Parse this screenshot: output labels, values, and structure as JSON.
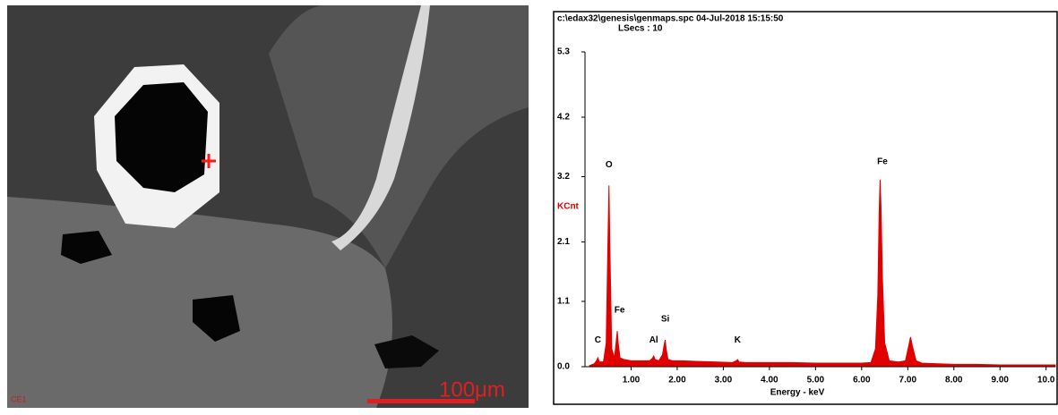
{
  "micrograph": {
    "label": "CE1",
    "scale_label": "100μm"
  },
  "chart_data": {
    "type": "area",
    "title": "c:\\edax32\\genesis\\genmaps.spc  04-Jul-2018 15:15:50",
    "subtitle": "LSecs : 10",
    "y_label": "KCnt",
    "x_label": "Energy - keV",
    "xlim": [
      0,
      10.2
    ],
    "ylim": [
      0,
      5.3
    ],
    "xticks": [
      {
        "value": 1,
        "label": "1.00"
      },
      {
        "value": 2,
        "label": "2.00"
      },
      {
        "value": 3,
        "label": "3.00"
      },
      {
        "value": 4,
        "label": "4.00"
      },
      {
        "value": 5,
        "label": "5.00"
      },
      {
        "value": 6,
        "label": "6.00"
      },
      {
        "value": 7,
        "label": "7.00"
      },
      {
        "value": 8,
        "label": "8.00"
      },
      {
        "value": 9,
        "label": "9.00"
      },
      {
        "value": 10,
        "label": "10.0"
      }
    ],
    "yticks": [
      {
        "value": 0,
        "label": "0.0"
      },
      1.1,
      2.1,
      3.2,
      4.2,
      5.3
    ],
    "x": [
      0.1,
      0.2,
      0.25,
      0.28,
      0.31,
      0.4,
      0.46,
      0.5,
      0.52,
      0.54,
      0.58,
      0.64,
      0.68,
      0.7,
      0.72,
      0.76,
      0.85,
      1.0,
      1.2,
      1.4,
      1.46,
      1.49,
      1.52,
      1.6,
      1.68,
      1.72,
      1.74,
      1.76,
      1.8,
      1.9,
      2.1,
      2.4,
      2.8,
      3.2,
      3.28,
      3.31,
      3.34,
      3.5,
      4.0,
      4.5,
      5.0,
      5.5,
      6.0,
      6.2,
      6.3,
      6.35,
      6.38,
      6.4,
      6.42,
      6.45,
      6.5,
      6.6,
      6.8,
      6.95,
      7.02,
      7.06,
      7.1,
      7.18,
      7.3,
      7.6,
      8.0,
      8.5,
      9.0,
      9.5,
      10.0,
      10.2
    ],
    "series": [
      {
        "color": "#e00000",
        "values": [
          0.02,
          0.05,
          0.1,
          0.15,
          0.08,
          0.08,
          0.4,
          2.2,
          3.05,
          2.0,
          0.3,
          0.15,
          0.45,
          0.6,
          0.4,
          0.15,
          0.12,
          0.1,
          0.1,
          0.1,
          0.14,
          0.18,
          0.12,
          0.1,
          0.2,
          0.38,
          0.45,
          0.3,
          0.12,
          0.1,
          0.1,
          0.09,
          0.08,
          0.07,
          0.1,
          0.12,
          0.08,
          0.07,
          0.07,
          0.07,
          0.06,
          0.06,
          0.06,
          0.07,
          0.3,
          1.2,
          2.6,
          3.15,
          2.7,
          1.5,
          0.4,
          0.1,
          0.08,
          0.1,
          0.35,
          0.5,
          0.35,
          0.1,
          0.06,
          0.05,
          0.04,
          0.04,
          0.03,
          0.03,
          0.03,
          0.03
        ]
      }
    ],
    "annotations": [
      {
        "text": "C",
        "x": 0.28,
        "y": 0.45
      },
      {
        "text": "O",
        "x": 0.52,
        "y": 3.4
      },
      {
        "text": "Fe",
        "x": 0.75,
        "y": 0.95
      },
      {
        "text": "Al",
        "x": 1.49,
        "y": 0.45
      },
      {
        "text": "Si",
        "x": 1.74,
        "y": 0.8
      },
      {
        "text": "K",
        "x": 3.31,
        "y": 0.45
      },
      {
        "text": "Fe",
        "x": 6.45,
        "y": 3.45
      }
    ]
  }
}
